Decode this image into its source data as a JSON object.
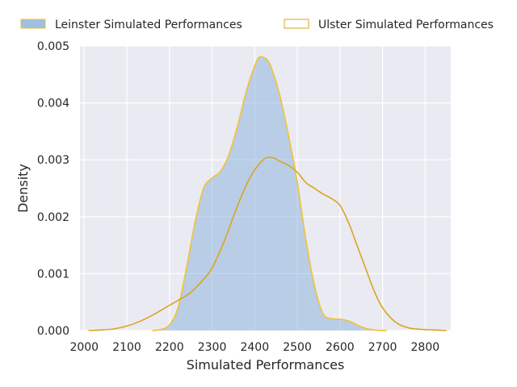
{
  "chart_data": {
    "type": "area",
    "title": "",
    "xlabel": "Simulated Performances",
    "ylabel": "Density",
    "xlim": [
      1990,
      2860
    ],
    "ylim": [
      0,
      0.005
    ],
    "xticks": [
      2000,
      2100,
      2200,
      2300,
      2400,
      2500,
      2600,
      2700,
      2800
    ],
    "yticks": [
      0.0,
      0.001,
      0.002,
      0.003,
      0.004,
      0.005
    ],
    "xtick_labels": [
      "2000",
      "2100",
      "2200",
      "2300",
      "2400",
      "2500",
      "2600",
      "2700",
      "2800"
    ],
    "ytick_labels": [
      "0.000",
      "0.001",
      "0.002",
      "0.003",
      "0.004",
      "0.005"
    ],
    "grid": true,
    "legend_position": "top",
    "background_color": "#eaeaf2",
    "series": [
      {
        "name": "Leinster Simulated Performances",
        "fill_color": "#8fb4dc",
        "line_color": "#f1c232",
        "filled": true,
        "x": [
          2160,
          2180,
          2200,
          2220,
          2240,
          2260,
          2280,
          2300,
          2320,
          2340,
          2360,
          2380,
          2400,
          2410,
          2420,
          2430,
          2440,
          2460,
          2480,
          2500,
          2520,
          2540,
          2560,
          2580,
          2600,
          2620,
          2640,
          2660,
          2680,
          2710
        ],
        "y": [
          0.0,
          2e-05,
          0.0001,
          0.0004,
          0.0011,
          0.0019,
          0.0025,
          0.00268,
          0.0028,
          0.0031,
          0.0036,
          0.0042,
          0.00465,
          0.0048,
          0.0048,
          0.00475,
          0.0046,
          0.0041,
          0.0034,
          0.0026,
          0.0016,
          0.0008,
          0.0003,
          0.00021,
          0.0002,
          0.00017,
          0.0001,
          4e-05,
          1e-05,
          0.0
        ]
      },
      {
        "name": "Ulster Simulated Performances",
        "fill_color": "#ffffff",
        "line_color": "#daa520",
        "filled": false,
        "x": [
          2010,
          2040,
          2070,
          2100,
          2130,
          2160,
          2190,
          2220,
          2250,
          2280,
          2300,
          2330,
          2360,
          2390,
          2420,
          2440,
          2460,
          2480,
          2500,
          2520,
          2540,
          2560,
          2580,
          2600,
          2620,
          2640,
          2660,
          2680,
          2700,
          2730,
          2760,
          2790,
          2820,
          2850
        ],
        "y": [
          0.0,
          1e-05,
          3e-05,
          8e-05,
          0.00016,
          0.00027,
          0.0004,
          0.00053,
          0.00067,
          0.0009,
          0.0011,
          0.0016,
          0.0022,
          0.0027,
          0.003,
          0.00304,
          0.00297,
          0.0029,
          0.00278,
          0.0026,
          0.0025,
          0.0024,
          0.00232,
          0.0022,
          0.0019,
          0.0015,
          0.0011,
          0.0007,
          0.0004,
          0.00015,
          5e-05,
          2e-05,
          1e-05,
          0.0
        ]
      }
    ]
  }
}
